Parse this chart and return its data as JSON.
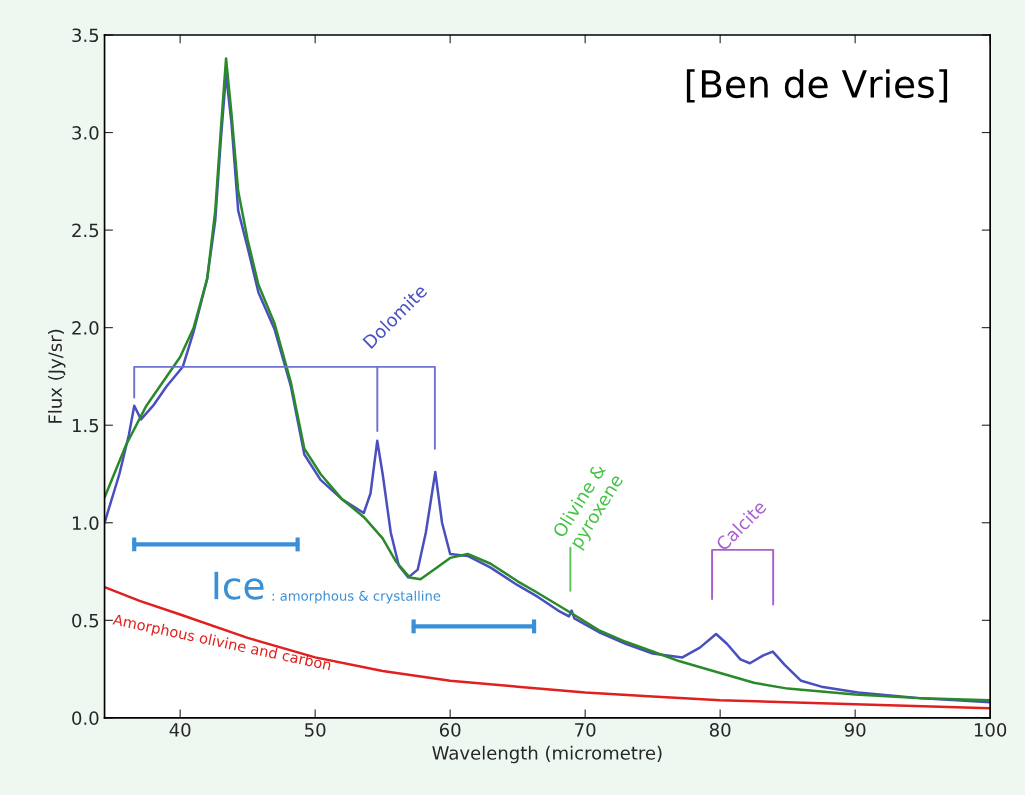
{
  "chart_data": {
    "type": "line",
    "xlabel": "Wavelength (micrometre)",
    "ylabel": "Flux (Jy/sr)",
    "xlim": [
      34.4,
      100
    ],
    "ylim": [
      0,
      3.5
    ],
    "xticks": [
      40,
      50,
      60,
      70,
      80,
      90,
      100
    ],
    "yticks": [
      {
        "value": 0,
        "label": "0.0"
      },
      {
        "value": 0.5,
        "label": "0.5"
      },
      {
        "value": 1,
        "label": "1.0"
      },
      {
        "value": 1.5,
        "label": "1.5"
      },
      {
        "value": 2,
        "label": "2.0"
      },
      {
        "value": 2.5,
        "label": "2.5"
      },
      {
        "value": 3,
        "label": "3.0"
      },
      {
        "value": 3.5,
        "label": "3.5"
      }
    ],
    "grid": false,
    "legend": false,
    "marker": "none",
    "line_style": "solid",
    "series": [
      {
        "color": "#4a4fc0",
        "x": [
          34.4,
          35.5,
          36.2,
          36.6,
          37.1,
          38.0,
          39.0,
          40.2,
          41.0,
          42.0,
          42.6,
          43.0,
          43.4,
          43.8,
          44.3,
          45.0,
          45.8,
          47.0,
          48.2,
          49.2,
          50.4,
          52.0,
          53.6,
          54.1,
          54.6,
          55.0,
          55.6,
          56.2,
          56.9,
          57.6,
          58.2,
          58.9,
          59.4,
          60.0,
          61.3,
          63.0,
          65.0,
          66.5,
          68.0,
          68.8,
          69.0,
          69.2,
          71.0,
          73.0,
          75.0,
          77.2,
          78.5,
          79.7,
          80.5,
          81.5,
          82.2,
          83.2,
          83.9,
          84.8,
          86.0,
          87.5,
          90.2,
          95.0,
          100.0
        ],
        "values": [
          1.0,
          1.25,
          1.45,
          1.6,
          1.53,
          1.6,
          1.7,
          1.8,
          1.98,
          2.25,
          2.55,
          2.95,
          3.3,
          3.05,
          2.6,
          2.41,
          2.18,
          1.99,
          1.7,
          1.35,
          1.22,
          1.12,
          1.05,
          1.15,
          1.42,
          1.25,
          0.95,
          0.78,
          0.72,
          0.76,
          0.95,
          1.26,
          1.0,
          0.84,
          0.83,
          0.77,
          0.68,
          0.62,
          0.55,
          0.52,
          0.55,
          0.51,
          0.44,
          0.38,
          0.33,
          0.31,
          0.36,
          0.43,
          0.38,
          0.3,
          0.28,
          0.32,
          0.34,
          0.27,
          0.19,
          0.16,
          0.13,
          0.1,
          0.08
        ]
      },
      {
        "color": "#2a8a2a",
        "x": [
          34.4,
          36.0,
          37.5,
          39.0,
          40.0,
          41.0,
          42.0,
          42.6,
          43.0,
          43.4,
          43.8,
          44.3,
          45.0,
          45.8,
          47.0,
          48.2,
          49.2,
          50.4,
          52.0,
          53.6,
          55.0,
          56.0,
          57.0,
          57.8,
          59.0,
          60.0,
          61.3,
          63.0,
          65.0,
          66.5,
          68.9,
          71.0,
          73.0,
          75.0,
          77.0,
          80.0,
          82.5,
          85.0,
          90.0,
          95.0,
          100.0
        ],
        "values": [
          1.13,
          1.4,
          1.6,
          1.75,
          1.85,
          2.0,
          2.25,
          2.6,
          3.0,
          3.38,
          3.1,
          2.7,
          2.45,
          2.22,
          2.02,
          1.72,
          1.38,
          1.25,
          1.12,
          1.03,
          0.92,
          0.8,
          0.72,
          0.71,
          0.77,
          0.82,
          0.84,
          0.79,
          0.7,
          0.64,
          0.54,
          0.45,
          0.39,
          0.34,
          0.29,
          0.23,
          0.18,
          0.15,
          0.12,
          0.1,
          0.09
        ]
      },
      {
        "color": "#e0201f",
        "x": [
          34.4,
          37,
          40,
          45,
          50,
          55,
          60,
          65,
          70,
          75,
          80,
          90,
          100
        ],
        "values": [
          0.67,
          0.6,
          0.53,
          0.41,
          0.31,
          0.24,
          0.19,
          0.16,
          0.13,
          0.11,
          0.09,
          0.07,
          0.05
        ]
      }
    ],
    "annotations": [
      "Dolomite",
      "Olivine &\npyroxene",
      "Calcite",
      "Ice",
      ": amorphous & crystalline",
      "Amorphous olivine and carbon",
      "[Ben de Vries]"
    ]
  }
}
